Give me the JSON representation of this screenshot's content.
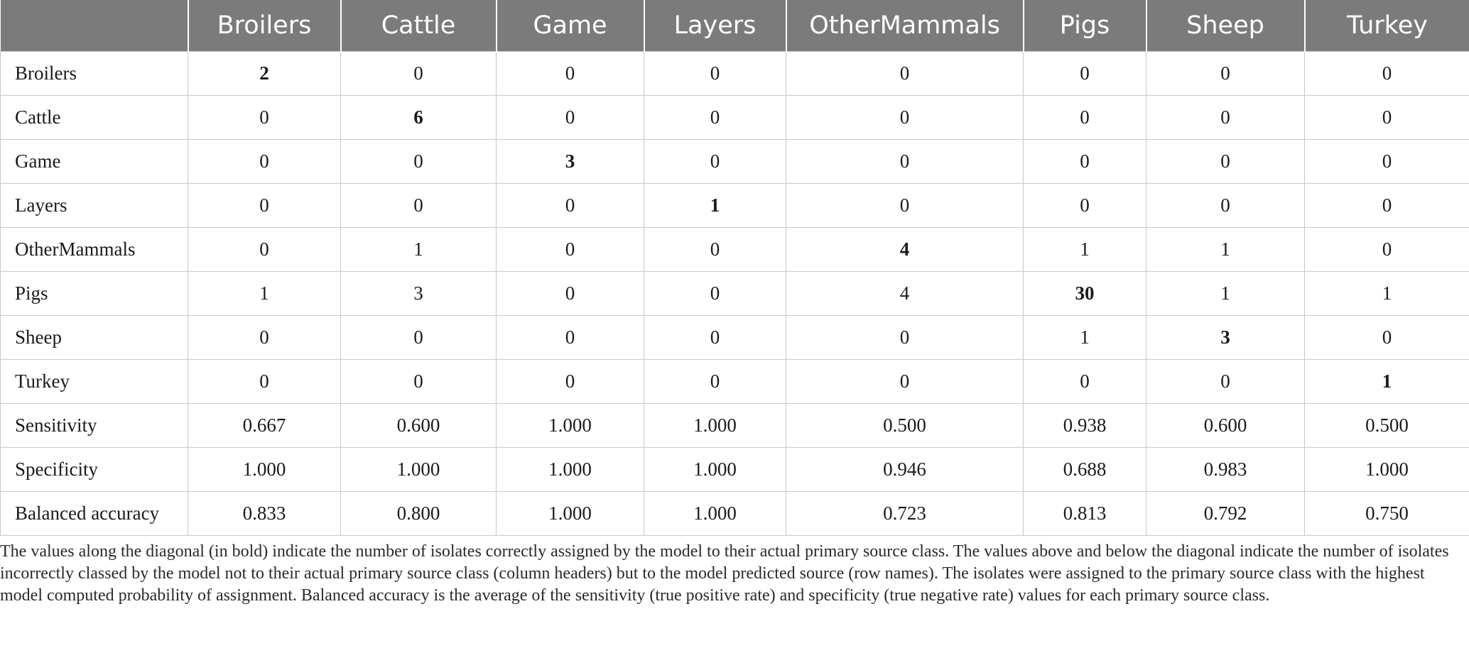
{
  "table": {
    "headers": [
      "",
      "Broilers",
      "Cattle",
      "Game",
      "Layers",
      "OtherMammals",
      "Pigs",
      "Sheep",
      "Turkey"
    ],
    "rows": [
      {
        "name": "Broilers",
        "cells": [
          "2",
          "0",
          "0",
          "0",
          "0",
          "0",
          "0",
          "0"
        ],
        "bold_index": 0
      },
      {
        "name": "Cattle",
        "cells": [
          "0",
          "6",
          "0",
          "0",
          "0",
          "0",
          "0",
          "0"
        ],
        "bold_index": 1
      },
      {
        "name": "Game",
        "cells": [
          "0",
          "0",
          "3",
          "0",
          "0",
          "0",
          "0",
          "0"
        ],
        "bold_index": 2
      },
      {
        "name": "Layers",
        "cells": [
          "0",
          "0",
          "0",
          "1",
          "0",
          "0",
          "0",
          "0"
        ],
        "bold_index": 3
      },
      {
        "name": "OtherMammals",
        "cells": [
          "0",
          "1",
          "0",
          "0",
          "4",
          "1",
          "1",
          "0"
        ],
        "bold_index": 4
      },
      {
        "name": "Pigs",
        "cells": [
          "1",
          "3",
          "0",
          "0",
          "4",
          "30",
          "1",
          "1"
        ],
        "bold_index": 5
      },
      {
        "name": "Sheep",
        "cells": [
          "0",
          "0",
          "0",
          "0",
          "0",
          "1",
          "3",
          "0"
        ],
        "bold_index": 6
      },
      {
        "name": "Turkey",
        "cells": [
          "0",
          "0",
          "0",
          "0",
          "0",
          "0",
          "0",
          "1"
        ],
        "bold_index": 7
      },
      {
        "name": "Sensitivity",
        "cells": [
          "0.667",
          "0.600",
          "1.000",
          "1.000",
          "0.500",
          "0.938",
          "0.600",
          "0.500"
        ]
      },
      {
        "name": "Specificity",
        "cells": [
          "1.000",
          "1.000",
          "1.000",
          "1.000",
          "0.946",
          "0.688",
          "0.983",
          "1.000"
        ]
      },
      {
        "name": "Balanced accuracy",
        "cells": [
          "0.833",
          "0.800",
          "1.000",
          "1.000",
          "0.723",
          "0.813",
          "0.792",
          "0.750"
        ]
      }
    ]
  },
  "footnote": "The values along the diagonal (in bold) indicate the number of isolates correctly assigned by the model to their actual primary source class. The values above and below the diagonal indicate the number of isolates incorrectly classed by the model not to their actual primary source class (column headers) but to the model predicted source (row names). The isolates were assigned to the primary source class with the highest model computed probability of assignment. Balanced accuracy is the average of the sensitivity (true positive rate) and specificity (true negative rate) values for each primary source class."
}
